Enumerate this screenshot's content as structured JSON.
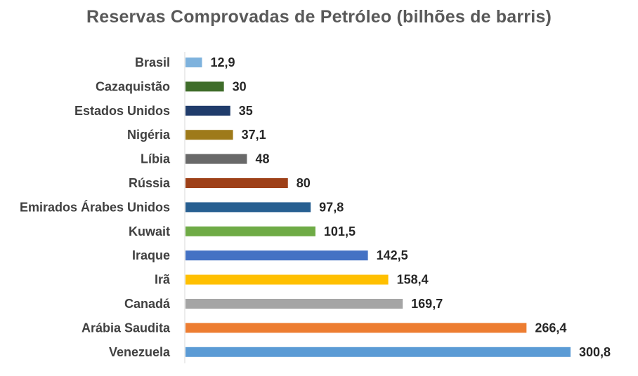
{
  "chart_data": {
    "type": "bar",
    "orientation": "horizontal",
    "title": "Reservas Comprovadas de Petróleo (bilhões de barris)",
    "xlabel": "",
    "ylabel": "",
    "grid": false,
    "legend": "none",
    "xlim": [
      0,
      300.8
    ],
    "categories": [
      "Brasil",
      "Cazaquistão",
      "Estados Unidos",
      "Nigéria",
      "Líbia",
      "Rússia",
      "Emirados Árabes Unidos",
      "Kuwait",
      "Iraque",
      "Irã",
      "Canadá",
      "Arábia Saudita",
      "Venezuela"
    ],
    "values": [
      12.9,
      30,
      35,
      37.1,
      48,
      80,
      97.8,
      101.5,
      142.5,
      158.4,
      169.7,
      266.4,
      300.8
    ],
    "value_labels": [
      "12,9",
      "30",
      "35",
      "37,1",
      "48",
      "80",
      "97,8",
      "101,5",
      "142,5",
      "158,4",
      "169,7",
      "266,4",
      "300,8"
    ],
    "colors": [
      "#7EB2DD",
      "#3F6D2A",
      "#203C6B",
      "#9E7A1A",
      "#696969",
      "#9E4018",
      "#275F91",
      "#6FAB46",
      "#4472C4",
      "#FFC000",
      "#A5A5A5",
      "#ED7D31",
      "#5B9BD5"
    ]
  }
}
